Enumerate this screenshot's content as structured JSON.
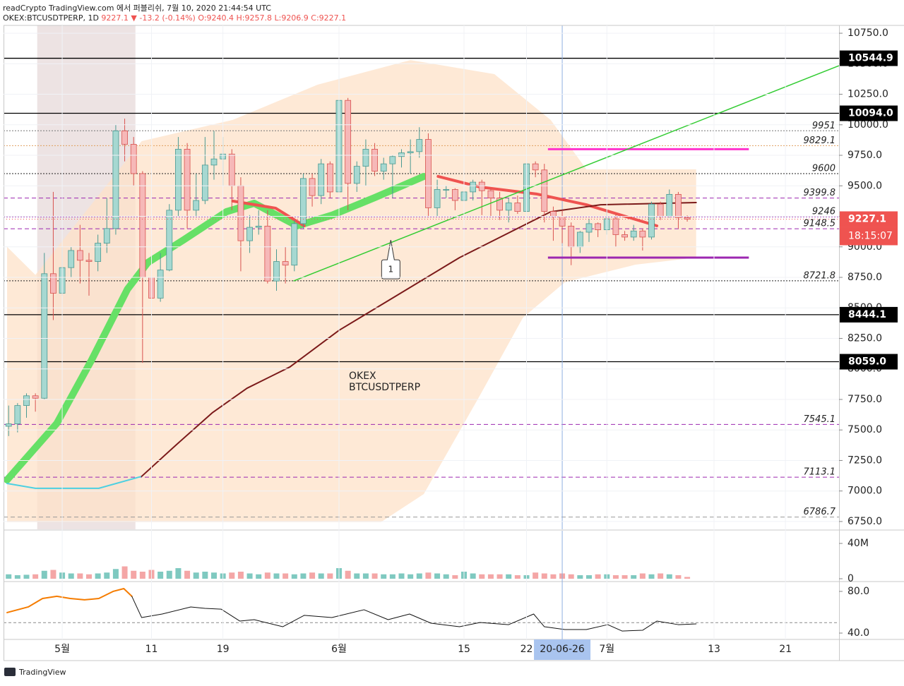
{
  "header": {
    "line1": "readCrypto TradingView.com 에서 퍼블리쉬, 7월 10, 2020 21:44:54 UTC",
    "symbol": "OKEX:BTCUSDTPERP, 1D",
    "last": "9227.1",
    "arrow": "▼",
    "change": "-13.2 (-0.14%)",
    "ohlc": "O:9240.4 H:9257.8 L:9206.9 C:9227.1"
  },
  "chart_data": {
    "type": "candlestick",
    "watermark": [
      "OKEX",
      "BTCUSDTPERP"
    ],
    "up_color": "#a6d8d1",
    "up_stroke": "#4a9a92",
    "down_color": "#f6b8b8",
    "down_stroke": "#d9534f",
    "xlim": [
      -0.57,
      93.0
    ],
    "ylim": [
      6686,
      10814
    ],
    "yticks": [
      {
        "value": 6750,
        "label": "6750.0"
      },
      {
        "value": 7000,
        "label": "7000.0"
      },
      {
        "value": 7250,
        "label": "7250.0"
      },
      {
        "value": 7500,
        "label": "7500.0"
      },
      {
        "value": 7750,
        "label": "7750.0"
      },
      {
        "value": 8000,
        "label": "8000.0"
      },
      {
        "value": 8250,
        "label": "8250.0"
      },
      {
        "value": 8500,
        "label": "8500.0"
      },
      {
        "value": 8750,
        "label": "8750.0"
      },
      {
        "value": 9000,
        "label": "9000.0"
      },
      {
        "value": 9250,
        "label": "9250.0"
      },
      {
        "value": 9500,
        "label": "9500.0"
      },
      {
        "value": 9750,
        "label": "9750.0"
      },
      {
        "value": 10000,
        "label": "10000.0"
      },
      {
        "value": 10250,
        "label": "10250.0"
      },
      {
        "value": 10500,
        "label": "10500.0"
      },
      {
        "value": 10750,
        "label": "10750.0"
      }
    ],
    "xticks": [
      {
        "value": 6,
        "label": "5월"
      },
      {
        "value": 16,
        "label": "11"
      },
      {
        "value": 24,
        "label": "19"
      },
      {
        "value": 37,
        "label": "6월"
      },
      {
        "value": 51,
        "label": "15"
      },
      {
        "value": 58,
        "label": "22"
      },
      {
        "value": 67,
        "label": "7월"
      },
      {
        "value": 79,
        "label": "13"
      },
      {
        "value": 87,
        "label": "21"
      }
    ],
    "grid": true,
    "candles": [
      [
        7530,
        7700,
        7450,
        7550
      ],
      [
        7550,
        7720,
        7480,
        7700
      ],
      [
        7700,
        7800,
        7600,
        7780
      ],
      [
        7780,
        7800,
        7650,
        7760
      ],
      [
        7760,
        8950,
        7750,
        8780
      ],
      [
        8780,
        9450,
        8400,
        8620
      ],
      [
        8620,
        9000,
        8600,
        8830
      ],
      [
        8830,
        9000,
        8750,
        8970
      ],
      [
        8970,
        9180,
        8700,
        8890
      ],
      [
        8890,
        8950,
        8600,
        8880
      ],
      [
        8880,
        9100,
        8800,
        9030
      ],
      [
        9030,
        9400,
        8950,
        9150
      ],
      [
        9150,
        10000,
        9100,
        9950
      ],
      [
        9950,
        10050,
        9700,
        9840
      ],
      [
        9840,
        9900,
        9500,
        9600
      ],
      [
        9600,
        9620,
        8050,
        8750
      ],
      [
        8750,
        9100,
        8200,
        8580
      ],
      [
        8580,
        8950,
        8550,
        8810
      ],
      [
        8810,
        9350,
        8800,
        9300
      ],
      [
        9300,
        9900,
        9250,
        9800
      ],
      [
        9800,
        9850,
        9150,
        9300
      ],
      [
        9300,
        9600,
        9250,
        9380
      ],
      [
        9380,
        9900,
        9350,
        9670
      ],
      [
        9670,
        9950,
        9550,
        9720
      ],
      [
        9720,
        9900,
        9500,
        9760
      ],
      [
        9760,
        9800,
        9300,
        9500
      ],
      [
        9500,
        9570,
        8800,
        9050
      ],
      [
        9050,
        9260,
        8950,
        9160
      ],
      [
        9160,
        9300,
        9100,
        9170
      ],
      [
        9170,
        9300,
        8700,
        8720
      ],
      [
        8720,
        8980,
        8640,
        8880
      ],
      [
        8880,
        9000,
        8700,
        8850
      ],
      [
        8850,
        9220,
        8800,
        9190
      ],
      [
        9190,
        9600,
        9150,
        9560
      ],
      [
        9560,
        9600,
        9330,
        9420
      ],
      [
        9420,
        9720,
        9350,
        9680
      ],
      [
        9680,
        9700,
        9400,
        9450
      ],
      [
        9450,
        10400,
        9420,
        10200
      ],
      [
        10200,
        10220,
        9300,
        9520
      ],
      [
        9520,
        9700,
        9450,
        9660
      ],
      [
        9660,
        9880,
        9500,
        9800
      ],
      [
        9800,
        9850,
        9580,
        9620
      ],
      [
        9620,
        9730,
        9550,
        9680
      ],
      [
        9680,
        9750,
        9400,
        9740
      ],
      [
        9740,
        9800,
        9650,
        9770
      ],
      [
        9770,
        9880,
        9600,
        9780
      ],
      [
        9780,
        9980,
        9730,
        9880
      ],
      [
        9880,
        9930,
        9250,
        9320
      ],
      [
        9320,
        9550,
        9250,
        9470
      ],
      [
        9470,
        9500,
        9400,
        9470
      ],
      [
        9470,
        9480,
        9300,
        9380
      ],
      [
        9380,
        9500,
        8950,
        9450
      ],
      [
        9450,
        9550,
        9380,
        9530
      ],
      [
        9530,
        9550,
        9260,
        9460
      ],
      [
        9460,
        9480,
        9250,
        9400
      ],
      [
        9400,
        9450,
        9220,
        9300
      ],
      [
        9300,
        9400,
        9200,
        9360
      ],
      [
        9360,
        9420,
        9270,
        9290
      ],
      [
        9290,
        9800,
        9280,
        9680
      ],
      [
        9680,
        9700,
        9570,
        9630
      ],
      [
        9630,
        9680,
        9200,
        9290
      ],
      [
        9290,
        9330,
        9050,
        9250
      ],
      [
        9250,
        9300,
        9030,
        9170
      ],
      [
        9170,
        9200,
        8850,
        9000
      ],
      [
        9000,
        9130,
        8950,
        9120
      ],
      [
        9120,
        9230,
        9040,
        9190
      ],
      [
        9190,
        9200,
        9080,
        9140
      ],
      [
        9140,
        9300,
        9100,
        9230
      ],
      [
        9230,
        9270,
        9000,
        9100
      ],
      [
        9100,
        9130,
        9050,
        9080
      ],
      [
        9080,
        9180,
        9050,
        9130
      ],
      [
        9130,
        9150,
        8970,
        9080
      ],
      [
        9080,
        9370,
        9060,
        9350
      ],
      [
        9350,
        9370,
        9220,
        9250
      ],
      [
        9250,
        9470,
        9240,
        9430
      ],
      [
        9430,
        9450,
        9150,
        9240
      ],
      [
        9240.4,
        9257.8,
        9206.9,
        9227.1
      ]
    ],
    "highlight": {
      "range": [
        3.2,
        14.2
      ],
      "color": "#e9dcdc"
    },
    "band": {
      "color": "#fde1c8",
      "x_upper": [
        -0.17,
        3.0,
        14.9,
        25.1,
        34.6,
        45.0,
        54.4,
        60.7,
        64.7,
        77.0
      ],
      "upper": [
        9000,
        8770,
        9866,
        10040,
        10328,
        10530,
        10415,
        10040,
        9635,
        9635
      ],
      "x_lower": [
        -0.17,
        15.0,
        41.7,
        46.5,
        52.8,
        57.6,
        62.3,
        70.2,
        77.0
      ],
      "lower": [
        6745,
        6745,
        6745,
        6975,
        7785,
        8420,
        8710,
        8854,
        8912
      ]
    },
    "overlays": [
      {
        "color": "#66e066",
        "width": 10,
        "x": [
          -0.17,
          5.4,
          9.3,
          13.3,
          15.6,
          19.6,
          24.4,
          27.5,
          32.3,
          36.2,
          41.0,
          46.5
        ],
        "values": [
          7091,
          7554,
          8074,
          8652,
          8872,
          9057,
          9288,
          9357,
          9172,
          9259,
          9403,
          9577
        ]
      },
      {
        "color": "#ef5350",
        "width": 4,
        "x": [
          25.1,
          29.9,
          33.1,
          null,
          48.1,
          52.8,
          59.2,
          64.7,
          72.6
        ],
        "values": [
          9375,
          9317,
          9172,
          null,
          9577,
          9490,
          9432,
          9345,
          9172
        ]
      },
      {
        "color": "#4dd0e1",
        "width": 2,
        "x": [
          -0.17,
          3.0,
          10.1,
          14.9
        ],
        "values": [
          7062,
          7022,
          7022,
          7120
        ]
      },
      {
        "color": "#7b1a1a",
        "width": 2,
        "x": [
          14.9,
          18.8,
          22.8,
          26.7,
          31.5,
          37.0,
          43.3,
          50.5,
          56.0,
          60.7,
          66.3,
          77.0
        ],
        "values": [
          7120,
          7380,
          7640,
          7842,
          8016,
          8316,
          8594,
          8912,
          9114,
          9287,
          9345,
          9363
        ]
      }
    ],
    "levels": [
      {
        "value": 10544.9,
        "label": "10544.9",
        "style": "box",
        "color": "#000000"
      },
      {
        "value": 10094.0,
        "label": "10094.0",
        "style": "box",
        "color": "#000000"
      },
      {
        "value": 9951,
        "label": "9951",
        "style": "dotted",
        "color": "#777777"
      },
      {
        "value": 9829.1,
        "label": "9829.1",
        "style": "dotted",
        "color": "#e0a060"
      },
      {
        "value": 9600,
        "label": "9600",
        "style": "dotted",
        "color": "#222222"
      },
      {
        "value": 9399.8,
        "label": "9399.8",
        "style": "dashed",
        "color": "#9c27b0"
      },
      {
        "value": 9246,
        "label": "9246",
        "style": "dotted",
        "color": "#9c27b0"
      },
      {
        "value": 9148.5,
        "label": "9148.5",
        "style": "dashed",
        "color": "#9c27b0"
      },
      {
        "value": 8721.8,
        "label": "8721.8",
        "style": "dotted",
        "color": "#222222"
      },
      {
        "value": 8444.1,
        "label": "8444.1",
        "style": "box",
        "color": "#000000"
      },
      {
        "value": 8059.0,
        "label": "8059.0",
        "style": "box",
        "color": "#000000"
      },
      {
        "value": 7545.1,
        "label": "7545.1",
        "style": "dashed",
        "color": "#9c27b0"
      },
      {
        "value": 7113.1,
        "label": "7113.1",
        "style": "dashed",
        "color": "#9c27b0"
      },
      {
        "value": 6786.7,
        "label": "6786.7",
        "style": "dashed",
        "color": "#999999"
      }
    ],
    "short_lines": [
      {
        "x": [
          60.4,
          82.9
        ],
        "value": 9800,
        "color": "#ff33cc"
      },
      {
        "x": [
          60.4,
          82.9
        ],
        "value": 8912,
        "color": "#9c27b0"
      }
    ],
    "trendline": {
      "x": [
        31.9,
        93.0
      ],
      "values": [
        8720,
        10484
      ],
      "color": "#33cc33"
    },
    "callout": {
      "x": 42.8,
      "value": 9056,
      "label": "1"
    },
    "crosshair": {
      "x": 62,
      "label": "20-06-26",
      "color": "#a9c4ef"
    },
    "price_tag": {
      "value": 9227.1,
      "label": "9227.1",
      "countdown": "18:15:07",
      "color": "#ef5350"
    },
    "volume": {
      "ylim": [
        0,
        54400000
      ],
      "yticks": [
        0,
        {
          "value": 40000000,
          "label": "40M"
        }
      ],
      "values": [
        5000000.0,
        4000000.0,
        4500000.0,
        5000000.0,
        9000000.0,
        10000000.0,
        7000000.0,
        6000000.0,
        6000000.0,
        5000000.0,
        6000000.0,
        7000000.0,
        11000000.0,
        14000000.0,
        9000000.0,
        8000000.0,
        10000000.0,
        8000000.0,
        9000000.0,
        12000000.0,
        9000000.0,
        7000000.0,
        8000000.0,
        7000000.0,
        6000000.0,
        7000000.0,
        8000000.0,
        6000000.0,
        5000000.0,
        7000000.0,
        6000000.0,
        6000000.0,
        5000000.0,
        6000000.0,
        7000000.0,
        6000000.0,
        6000000.0,
        12000000.0,
        9000000.0,
        6000000.0,
        6000000.0,
        6000000.0,
        5000000.0,
        5000000.0,
        6000000.0,
        5000000.0,
        6000000.0,
        7000000.0,
        6000000.0,
        5000000.0,
        4000000.0,
        8000000.0,
        6000000.0,
        5000000.0,
        5000000.0,
        5000000.0,
        5000000.0,
        4000000.0,
        4000000.0,
        7000000.0,
        6000000.0,
        5000000.0,
        6000000.0,
        5000000.0,
        4000000.0,
        4000000.0,
        5000000.0,
        5000000.0,
        4000000.0,
        4000000.0,
        4000000.0,
        6000000.0,
        5000000.0,
        6000000.0,
        5000000.0,
        4000000.0,
        2000000.0
      ]
    },
    "oscillator": {
      "ylim": [
        34.6,
        88.1
      ],
      "yticks": [
        {
          "value": 80,
          "label": "80.0"
        },
        {
          "value": 40,
          "label": "40.0"
        }
      ],
      "level": 50,
      "series": [
        {
          "color": "#f57c00",
          "x": [
            -0.17,
            2.2,
            3.8,
            5.4,
            6.9,
            8.5,
            10.1,
            11.7,
            12.9,
            13.8
          ],
          "values": [
            59.7,
            65.1,
            73.2,
            75.3,
            73.2,
            71.9,
            73.2,
            80,
            82.7,
            75.3
          ]
        },
        {
          "color": "#111111",
          "x": [
            13.8,
            14.9,
            17.2,
            20.4,
            22.0,
            23.8,
            25.9,
            27.5,
            30.7,
            33.1,
            36.2,
            39.8,
            42.5,
            44.9,
            47.3,
            50.5,
            52.8,
            56.0,
            58.8,
            60.0,
            62.3,
            64.7,
            67.1,
            68.7,
            71.0,
            72.6,
            75.0,
            77.0
          ],
          "values": [
            75.3,
            54.9,
            58.3,
            65.1,
            63.7,
            63,
            51.5,
            52.9,
            46.1,
            57,
            54.9,
            62.4,
            52.9,
            58.3,
            49.5,
            46.1,
            50.2,
            48.1,
            58.3,
            46.1,
            43.4,
            43.4,
            48.1,
            42,
            42.7,
            51.5,
            48.1,
            48.8
          ]
        }
      ]
    }
  },
  "footer": "TradingView"
}
